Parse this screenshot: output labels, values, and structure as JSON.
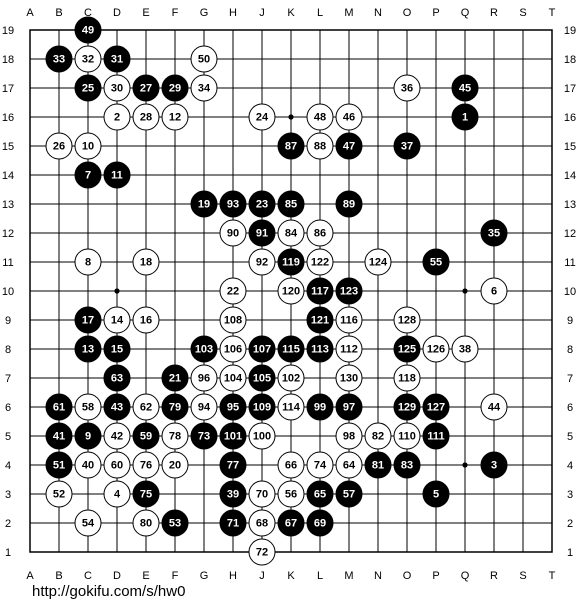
{
  "board": {
    "size": 19,
    "col_labels": [
      "A",
      "B",
      "C",
      "D",
      "E",
      "F",
      "G",
      "H",
      "J",
      "K",
      "L",
      "M",
      "N",
      "O",
      "P",
      "Q",
      "R",
      "S",
      "T"
    ],
    "row_labels": [
      "19",
      "18",
      "17",
      "16",
      "15",
      "14",
      "13",
      "12",
      "11",
      "10",
      "9",
      "8",
      "7",
      "6",
      "5",
      "4",
      "3",
      "2",
      "1"
    ],
    "hoshi": [
      "D16",
      "K16",
      "Q16",
      "D10",
      "K10",
      "Q10",
      "D4",
      "K4",
      "Q4"
    ],
    "stones": [
      {
        "pos": "C19",
        "color": "black",
        "n": "49"
      },
      {
        "pos": "B18",
        "color": "black",
        "n": "33"
      },
      {
        "pos": "C18",
        "color": "white",
        "n": "32"
      },
      {
        "pos": "D18",
        "color": "black",
        "n": "31"
      },
      {
        "pos": "G18",
        "color": "white",
        "n": "50"
      },
      {
        "pos": "C17",
        "color": "black",
        "n": "25"
      },
      {
        "pos": "D17",
        "color": "white",
        "n": "30"
      },
      {
        "pos": "E17",
        "color": "black",
        "n": "27"
      },
      {
        "pos": "F17",
        "color": "black",
        "n": "29"
      },
      {
        "pos": "G17",
        "color": "white",
        "n": "34"
      },
      {
        "pos": "O17",
        "color": "white",
        "n": "36"
      },
      {
        "pos": "Q17",
        "color": "black",
        "n": "45"
      },
      {
        "pos": "D16",
        "color": "white",
        "n": "2"
      },
      {
        "pos": "E16",
        "color": "white",
        "n": "28"
      },
      {
        "pos": "F16",
        "color": "white",
        "n": "12"
      },
      {
        "pos": "J16",
        "color": "white",
        "n": "24"
      },
      {
        "pos": "L16",
        "color": "white",
        "n": "48"
      },
      {
        "pos": "M16",
        "color": "white",
        "n": "46"
      },
      {
        "pos": "Q16",
        "color": "black",
        "n": "1"
      },
      {
        "pos": "B15",
        "color": "white",
        "n": "26"
      },
      {
        "pos": "C15",
        "color": "white",
        "n": "10"
      },
      {
        "pos": "K15",
        "color": "black",
        "n": "87"
      },
      {
        "pos": "L15",
        "color": "white",
        "n": "88"
      },
      {
        "pos": "M15",
        "color": "black",
        "n": "47"
      },
      {
        "pos": "O15",
        "color": "black",
        "n": "37"
      },
      {
        "pos": "C14",
        "color": "black",
        "n": "7"
      },
      {
        "pos": "D14",
        "color": "black",
        "n": "11"
      },
      {
        "pos": "G13",
        "color": "black",
        "n": "19"
      },
      {
        "pos": "H13",
        "color": "black",
        "n": "93"
      },
      {
        "pos": "J13",
        "color": "black",
        "n": "23"
      },
      {
        "pos": "K13",
        "color": "black",
        "n": "85"
      },
      {
        "pos": "M13",
        "color": "black",
        "n": "89"
      },
      {
        "pos": "H12",
        "color": "white",
        "n": "90"
      },
      {
        "pos": "J12",
        "color": "black",
        "n": "91"
      },
      {
        "pos": "K12",
        "color": "white",
        "n": "84"
      },
      {
        "pos": "L12",
        "color": "white",
        "n": "86"
      },
      {
        "pos": "R12",
        "color": "black",
        "n": "35"
      },
      {
        "pos": "C11",
        "color": "white",
        "n": "8"
      },
      {
        "pos": "E11",
        "color": "white",
        "n": "18"
      },
      {
        "pos": "J11",
        "color": "white",
        "n": "92"
      },
      {
        "pos": "K11",
        "color": "black",
        "n": "119"
      },
      {
        "pos": "L11",
        "color": "white",
        "n": "122"
      },
      {
        "pos": "N11",
        "color": "white",
        "n": "124"
      },
      {
        "pos": "P11",
        "color": "black",
        "n": "55"
      },
      {
        "pos": "H10",
        "color": "white",
        "n": "22"
      },
      {
        "pos": "K10",
        "color": "white",
        "n": "120"
      },
      {
        "pos": "L10",
        "color": "black",
        "n": "117"
      },
      {
        "pos": "M10",
        "color": "black",
        "n": "123"
      },
      {
        "pos": "R10",
        "color": "white",
        "n": "6"
      },
      {
        "pos": "C9",
        "color": "black",
        "n": "17"
      },
      {
        "pos": "D9",
        "color": "white",
        "n": "14"
      },
      {
        "pos": "E9",
        "color": "white",
        "n": "16"
      },
      {
        "pos": "H9",
        "color": "white",
        "n": "108"
      },
      {
        "pos": "L9",
        "color": "black",
        "n": "121"
      },
      {
        "pos": "M9",
        "color": "white",
        "n": "116"
      },
      {
        "pos": "O9",
        "color": "white",
        "n": "128"
      },
      {
        "pos": "C8",
        "color": "black",
        "n": "13"
      },
      {
        "pos": "D8",
        "color": "black",
        "n": "15"
      },
      {
        "pos": "G8",
        "color": "black",
        "n": "103"
      },
      {
        "pos": "H8",
        "color": "white",
        "n": "106"
      },
      {
        "pos": "J8",
        "color": "black",
        "n": "107"
      },
      {
        "pos": "K8",
        "color": "black",
        "n": "115"
      },
      {
        "pos": "L8",
        "color": "black",
        "n": "113"
      },
      {
        "pos": "M8",
        "color": "white",
        "n": "112"
      },
      {
        "pos": "O8",
        "color": "black",
        "n": "125"
      },
      {
        "pos": "P8",
        "color": "white",
        "n": "126"
      },
      {
        "pos": "Q8",
        "color": "white",
        "n": "38"
      },
      {
        "pos": "D7",
        "color": "black",
        "n": "63"
      },
      {
        "pos": "F7",
        "color": "black",
        "n": "21"
      },
      {
        "pos": "G7",
        "color": "white",
        "n": "96"
      },
      {
        "pos": "H7",
        "color": "white",
        "n": "104"
      },
      {
        "pos": "J7",
        "color": "black",
        "n": "105"
      },
      {
        "pos": "K7",
        "color": "white",
        "n": "102"
      },
      {
        "pos": "M7",
        "color": "white",
        "n": "130"
      },
      {
        "pos": "O7",
        "color": "white",
        "n": "118"
      },
      {
        "pos": "B6",
        "color": "black",
        "n": "61"
      },
      {
        "pos": "C6",
        "color": "white",
        "n": "58"
      },
      {
        "pos": "D6",
        "color": "black",
        "n": "43"
      },
      {
        "pos": "E6",
        "color": "white",
        "n": "62"
      },
      {
        "pos": "F6",
        "color": "black",
        "n": "79"
      },
      {
        "pos": "G6",
        "color": "white",
        "n": "94"
      },
      {
        "pos": "H6",
        "color": "black",
        "n": "95"
      },
      {
        "pos": "J6",
        "color": "black",
        "n": "109"
      },
      {
        "pos": "K6",
        "color": "white",
        "n": "114"
      },
      {
        "pos": "L6",
        "color": "black",
        "n": "99"
      },
      {
        "pos": "M6",
        "color": "black",
        "n": "97"
      },
      {
        "pos": "O6",
        "color": "black",
        "n": "129"
      },
      {
        "pos": "P6",
        "color": "black",
        "n": "127"
      },
      {
        "pos": "R6",
        "color": "white",
        "n": "44"
      },
      {
        "pos": "B5",
        "color": "black",
        "n": "41"
      },
      {
        "pos": "C5",
        "color": "black",
        "n": "9"
      },
      {
        "pos": "D5",
        "color": "white",
        "n": "42"
      },
      {
        "pos": "E5",
        "color": "black",
        "n": "59"
      },
      {
        "pos": "F5",
        "color": "white",
        "n": "78"
      },
      {
        "pos": "G5",
        "color": "black",
        "n": "73"
      },
      {
        "pos": "H5",
        "color": "black",
        "n": "101"
      },
      {
        "pos": "J5",
        "color": "white",
        "n": "100"
      },
      {
        "pos": "M5",
        "color": "white",
        "n": "98"
      },
      {
        "pos": "N5",
        "color": "white",
        "n": "82"
      },
      {
        "pos": "O5",
        "color": "white",
        "n": "110"
      },
      {
        "pos": "P5",
        "color": "black",
        "n": "111"
      },
      {
        "pos": "B4",
        "color": "black",
        "n": "51"
      },
      {
        "pos": "C4",
        "color": "white",
        "n": "40"
      },
      {
        "pos": "D4",
        "color": "white",
        "n": "60"
      },
      {
        "pos": "E4",
        "color": "white",
        "n": "76"
      },
      {
        "pos": "F4",
        "color": "white",
        "n": "20"
      },
      {
        "pos": "H4",
        "color": "black",
        "n": "77"
      },
      {
        "pos": "K4",
        "color": "white",
        "n": "66"
      },
      {
        "pos": "L4",
        "color": "white",
        "n": "74"
      },
      {
        "pos": "M4",
        "color": "white",
        "n": "64"
      },
      {
        "pos": "N4",
        "color": "black",
        "n": "81"
      },
      {
        "pos": "O4",
        "color": "black",
        "n": "83"
      },
      {
        "pos": "R4",
        "color": "black",
        "n": "3"
      },
      {
        "pos": "B3",
        "color": "white",
        "n": "52"
      },
      {
        "pos": "D3",
        "color": "white",
        "n": "4"
      },
      {
        "pos": "E3",
        "color": "black",
        "n": "75"
      },
      {
        "pos": "H3",
        "color": "black",
        "n": "39"
      },
      {
        "pos": "J3",
        "color": "white",
        "n": "70"
      },
      {
        "pos": "K3",
        "color": "white",
        "n": "56"
      },
      {
        "pos": "L3",
        "color": "black",
        "n": "65"
      },
      {
        "pos": "M3",
        "color": "black",
        "n": "57"
      },
      {
        "pos": "P3",
        "color": "black",
        "n": "5"
      },
      {
        "pos": "C2",
        "color": "white",
        "n": "54"
      },
      {
        "pos": "E2",
        "color": "white",
        "n": "80"
      },
      {
        "pos": "F2",
        "color": "black",
        "n": "53"
      },
      {
        "pos": "H2",
        "color": "black",
        "n": "71"
      },
      {
        "pos": "J2",
        "color": "white",
        "n": "68"
      },
      {
        "pos": "K2",
        "color": "black",
        "n": "67"
      },
      {
        "pos": "L2",
        "color": "black",
        "n": "69"
      },
      {
        "pos": "J1",
        "color": "white",
        "n": "72"
      }
    ]
  },
  "footer": {
    "url": "http://gokifu.com/s/hw0"
  },
  "colors": {
    "background": "#ffffff",
    "line": "#000000",
    "black_stone": "#000000",
    "white_stone": "#ffffff"
  }
}
